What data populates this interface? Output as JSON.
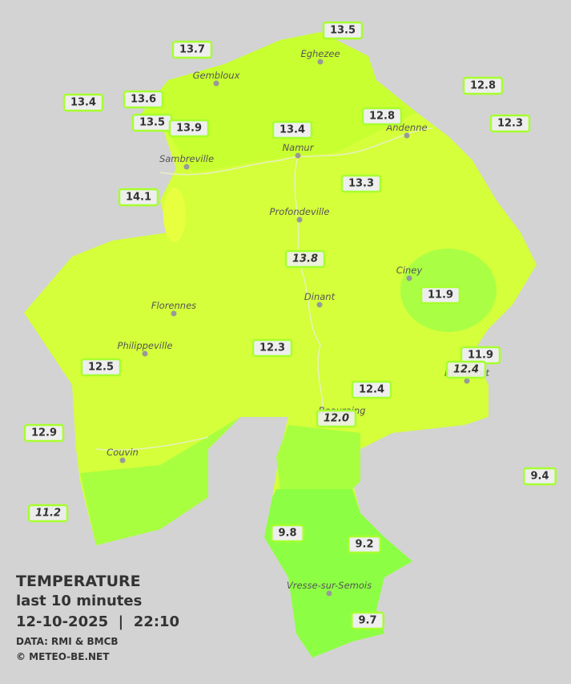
{
  "title": {
    "heading": "TEMPERATURE",
    "period": "last 10 minutes",
    "timestamp": "12-10-2025  |  22:10",
    "source": "DATA: RMI & BMCB",
    "credit": "© METEO-BE.NET"
  },
  "cities": [
    "Eghezee",
    "Gembloux",
    "Andenne",
    "Namur",
    "Sambreville",
    "Profondeville",
    "Ciney",
    "Florennes",
    "Dinant",
    "Philippeville",
    "Rochefort",
    "Beauraing",
    "Couvin",
    "Vresse-sur-Semois"
  ],
  "stations": [
    {
      "label": "13.5",
      "italic": false
    },
    {
      "label": "13.7",
      "italic": false
    },
    {
      "label": "13.4",
      "italic": false
    },
    {
      "label": "13.6",
      "italic": false
    },
    {
      "label": "12.8",
      "italic": false
    },
    {
      "label": "12.8",
      "italic": false
    },
    {
      "label": "13.5",
      "italic": false
    },
    {
      "label": "13.9",
      "italic": false
    },
    {
      "label": "13.4",
      "italic": false
    },
    {
      "label": "12.3",
      "italic": false
    },
    {
      "label": "13.3",
      "italic": false
    },
    {
      "label": "14.1",
      "italic": false
    },
    {
      "label": "13.8",
      "italic": true
    },
    {
      "label": "11.9",
      "italic": false
    },
    {
      "label": "12.3",
      "italic": false
    },
    {
      "label": "11.9",
      "italic": false
    },
    {
      "label": "12.4",
      "italic": true
    },
    {
      "label": "12.5",
      "italic": false
    },
    {
      "label": "12.4",
      "italic": false
    },
    {
      "label": "12.0",
      "italic": true
    },
    {
      "label": "12.9",
      "italic": false
    },
    {
      "label": "9.4",
      "italic": false
    },
    {
      "label": "11.2",
      "italic": true
    },
    {
      "label": "9.8",
      "italic": false
    },
    {
      "label": "9.2",
      "italic": false
    },
    {
      "label": "9.7",
      "italic": false
    }
  ]
}
